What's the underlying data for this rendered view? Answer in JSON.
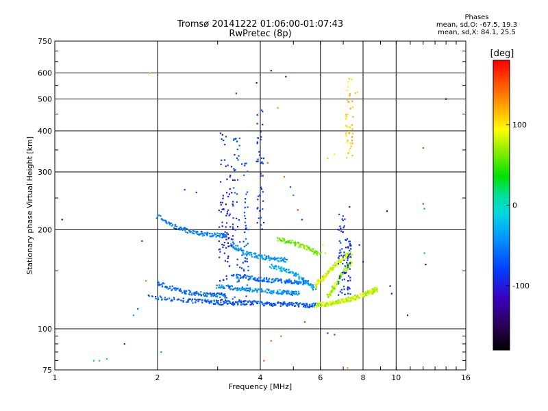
{
  "title": "Tromsø 20141222 01:06:00-01:07:43",
  "subtitle": "RwPretec (8p)",
  "phases": {
    "heading": "Phases",
    "line_o": "mean, sd,O: -67.5, 19.3",
    "line_x": "mean, sd,X:  84.1, 25.5"
  },
  "colorbar": {
    "unit_label": "[deg]",
    "range": [
      -180,
      180
    ],
    "tick_values": [
      100,
      0,
      -100
    ],
    "tick_labels": [
      "100",
      "0",
      "-100"
    ]
  },
  "chart_data": {
    "type": "scatter",
    "xlabel": "Frequency [MHz]",
    "ylabel": "Stationary phase Virtual Height [km]",
    "xscale": "log",
    "yscale": "log",
    "xlim": [
      1,
      16
    ],
    "ylim": [
      75,
      750
    ],
    "x_ticks": [
      1,
      2,
      4,
      6,
      8,
      10,
      16
    ],
    "x_tick_labels": [
      "1",
      "2",
      "4",
      "6",
      "8",
      "10",
      "16"
    ],
    "y_ticks": [
      75,
      100,
      200,
      300,
      400,
      500,
      600,
      750
    ],
    "y_tick_labels": [
      "75",
      "100",
      "200",
      "300",
      "400",
      "500",
      "600",
      "750"
    ],
    "grid": true,
    "color_by": "phase (deg)",
    "traces": [
      {
        "x": [
          1.9,
          2.4,
          2.8,
          3.1,
          3.4,
          3.8,
          4.3,
          4.8,
          5.4,
          5.9
        ],
        "y": [
          125,
          122,
          121,
          120,
          120,
          120,
          119,
          119,
          118,
          118
        ],
        "phase": -70
      },
      {
        "x": [
          2.0,
          2.3,
          2.6,
          2.9,
          3.2
        ],
        "y": [
          138,
          131,
          128,
          127,
          126
        ],
        "phase": -60
      },
      {
        "x": [
          2.0,
          2.3,
          2.6,
          2.9,
          3.2
        ],
        "y": [
          220,
          202,
          196,
          193,
          192
        ],
        "phase": -55
      },
      {
        "x": [
          3.0,
          3.4,
          3.8,
          4.3,
          4.8,
          5.2
        ],
        "y": [
          135,
          133,
          131,
          130,
          129,
          128
        ],
        "phase": -45
      },
      {
        "x": [
          3.3,
          3.7,
          4.1,
          4.6,
          5.1,
          5.6
        ],
        "y": [
          145,
          143,
          141,
          140,
          139,
          138
        ],
        "phase": -60
      },
      {
        "x": [
          4.3,
          4.8,
          5.3,
          5.8
        ],
        "y": [
          155,
          150,
          142,
          132
        ],
        "phase": -35
      },
      {
        "x": [
          3.3,
          3.6,
          4.0,
          4.4,
          4.8
        ],
        "y": [
          180,
          170,
          166,
          163,
          162
        ],
        "phase": -40
      },
      {
        "x": [
          5.8,
          6.2,
          6.6,
          7.0,
          7.5,
          8.0,
          8.5,
          8.8
        ],
        "y": [
          118,
          119,
          120,
          122,
          124,
          127,
          130,
          132
        ],
        "phase": 80
      },
      {
        "x": [
          6.3,
          6.6,
          7.0,
          7.4
        ],
        "y": [
          125,
          135,
          148,
          160
        ],
        "phase": 70
      },
      {
        "x": [
          5.8,
          6.2,
          6.6,
          7.0,
          7.4
        ],
        "y": [
          135,
          145,
          155,
          165,
          170
        ],
        "phase": 85
      },
      {
        "x": [
          4.5,
          5.0,
          5.5,
          6.0
        ],
        "y": [
          188,
          183,
          176,
          168
        ],
        "phase": 60
      }
    ],
    "columns": [
      {
        "x": 3.1,
        "y_from": 115,
        "y_to": 400,
        "phase": -95
      },
      {
        "x": 3.4,
        "y_from": 120,
        "y_to": 380,
        "phase": -80
      },
      {
        "x": 3.25,
        "y_from": 130,
        "y_to": 320,
        "phase": -100
      },
      {
        "x": 4.0,
        "y_from": 200,
        "y_to": 480,
        "phase": -90
      },
      {
        "x": 3.6,
        "y_from": 120,
        "y_to": 320,
        "phase": -75
      },
      {
        "x": 7.3,
        "y_from": 330,
        "y_to": 580,
        "phase": 110
      },
      {
        "x": 6.9,
        "y_from": 125,
        "y_to": 230,
        "phase": -85
      },
      {
        "x": 7.2,
        "y_from": 124,
        "y_to": 190,
        "phase": -90
      }
    ],
    "points": [
      {
        "x": 1.05,
        "y": 215,
        "phase": -120
      },
      {
        "x": 1.3,
        "y": 80,
        "phase": -20
      },
      {
        "x": 1.35,
        "y": 80,
        "phase": -30
      },
      {
        "x": 1.42,
        "y": 81,
        "phase": -20
      },
      {
        "x": 1.6,
        "y": 90,
        "phase": -100
      },
      {
        "x": 1.7,
        "y": 110,
        "phase": -30
      },
      {
        "x": 1.75,
        "y": 115,
        "phase": -60
      },
      {
        "x": 1.8,
        "y": 185,
        "phase": -90
      },
      {
        "x": 1.85,
        "y": 140,
        "phase": 140
      },
      {
        "x": 2.05,
        "y": 85,
        "phase": -40
      },
      {
        "x": 2.4,
        "y": 265,
        "phase": -80
      },
      {
        "x": 2.6,
        "y": 260,
        "phase": -90
      },
      {
        "x": 3.4,
        "y": 520,
        "phase": -80
      },
      {
        "x": 3.9,
        "y": 560,
        "phase": -120
      },
      {
        "x": 4.3,
        "y": 610,
        "phase": -110
      },
      {
        "x": 4.75,
        "y": 585,
        "phase": -100
      },
      {
        "x": 4.5,
        "y": 470,
        "phase": 130
      },
      {
        "x": 4.2,
        "y": 320,
        "phase": 150
      },
      {
        "x": 4.7,
        "y": 290,
        "phase": 140
      },
      {
        "x": 4.9,
        "y": 270,
        "phase": -60
      },
      {
        "x": 5.0,
        "y": 255,
        "phase": -40
      },
      {
        "x": 5.15,
        "y": 230,
        "phase": 160
      },
      {
        "x": 5.3,
        "y": 215,
        "phase": -80
      },
      {
        "x": 4.1,
        "y": 80,
        "phase": 150
      },
      {
        "x": 4.3,
        "y": 92,
        "phase": 150
      },
      {
        "x": 4.6,
        "y": 95,
        "phase": 140
      },
      {
        "x": 5.4,
        "y": 105,
        "phase": 160
      },
      {
        "x": 6.3,
        "y": 97,
        "phase": -80
      },
      {
        "x": 6.6,
        "y": 96,
        "phase": -60
      },
      {
        "x": 7.2,
        "y": 76,
        "phase": 130
      },
      {
        "x": 7.6,
        "y": 521,
        "phase": 115
      },
      {
        "x": 7.7,
        "y": 525,
        "phase": 110
      },
      {
        "x": 7.3,
        "y": 235,
        "phase": -110
      },
      {
        "x": 9.4,
        "y": 228,
        "phase": -150
      },
      {
        "x": 9.6,
        "y": 135,
        "phase": -120
      },
      {
        "x": 9.7,
        "y": 128,
        "phase": -110
      },
      {
        "x": 10.8,
        "y": 110,
        "phase": -110
      },
      {
        "x": 12.0,
        "y": 355,
        "phase": 160
      },
      {
        "x": 12.0,
        "y": 240,
        "phase": 165
      },
      {
        "x": 12.1,
        "y": 232,
        "phase": -40
      },
      {
        "x": 12.1,
        "y": 170,
        "phase": -30
      },
      {
        "x": 12.2,
        "y": 157,
        "phase": -120
      },
      {
        "x": 14.0,
        "y": 500,
        "phase": -170
      },
      {
        "x": 6.3,
        "y": 330,
        "phase": 110
      },
      {
        "x": 6.6,
        "y": 340,
        "phase": 90
      },
      {
        "x": 6.1,
        "y": 180,
        "phase": 100
      },
      {
        "x": 6.2,
        "y": 170,
        "phase": 80
      },
      {
        "x": 7.8,
        "y": 180,
        "phase": -120
      },
      {
        "x": 8.0,
        "y": 160,
        "phase": -100
      },
      {
        "x": 1.9,
        "y": 600,
        "phase": 120
      }
    ]
  }
}
